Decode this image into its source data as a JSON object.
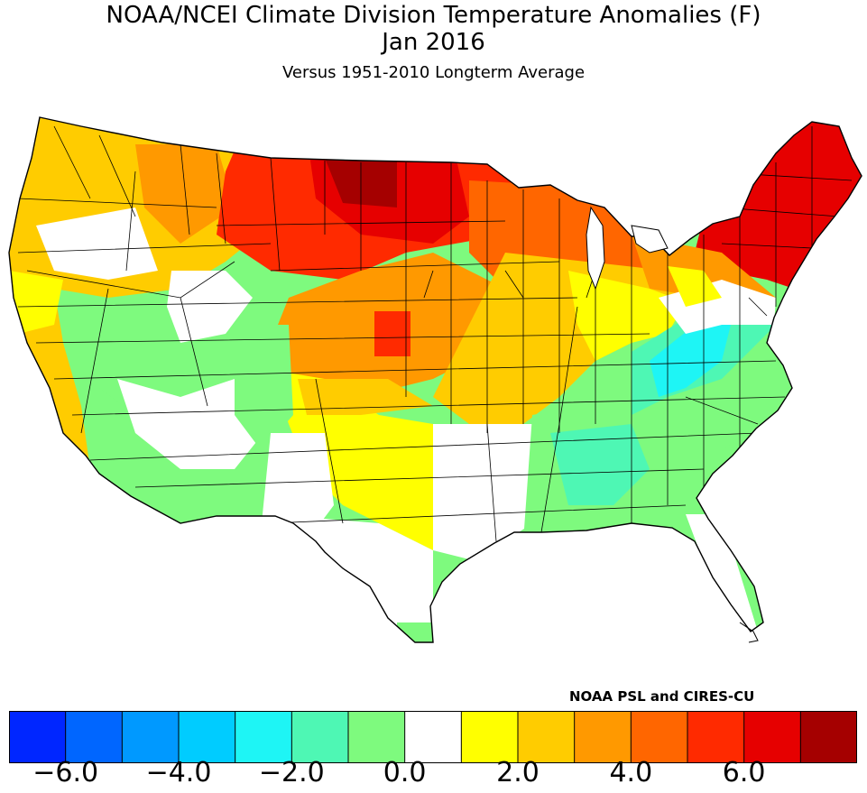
{
  "title": "NOAA/NCEI Climate Division Temperature Anomalies (F)",
  "period": "Jan 2016",
  "subtitle": "Versus 1951-2010 Longterm Average",
  "credit": "NOAA PSL and CIRES-CU",
  "colors": {
    "outline": "#000000",
    "background": "#ffffff",
    "plains_core": "#ff2a00",
    "dakotas_core": "#a50000",
    "new_england": "#e60000"
  },
  "legend": {
    "units": "F",
    "bins": [
      {
        "min": null,
        "max": -6.0,
        "color": "#0026ff"
      },
      {
        "min": -6.0,
        "max": -5.0,
        "color": "#0066ff"
      },
      {
        "min": -5.0,
        "max": -4.0,
        "color": "#0099ff"
      },
      {
        "min": -4.0,
        "max": -3.0,
        "color": "#00ccff"
      },
      {
        "min": -3.0,
        "max": -2.0,
        "color": "#1ef5f5"
      },
      {
        "min": -2.0,
        "max": -1.0,
        "color": "#4ef7b4"
      },
      {
        "min": -1.0,
        "max": 0.0,
        "color": "#7efa7e"
      },
      {
        "min": 0.0,
        "max": 1.0,
        "color": "#ffffff"
      },
      {
        "min": 1.0,
        "max": 2.0,
        "color": "#ffff00"
      },
      {
        "min": 2.0,
        "max": 3.0,
        "color": "#ffcc00"
      },
      {
        "min": 3.0,
        "max": 4.0,
        "color": "#ff9900"
      },
      {
        "min": 4.0,
        "max": 5.0,
        "color": "#ff6600"
      },
      {
        "min": 5.0,
        "max": 6.0,
        "color": "#ff2a00"
      },
      {
        "min": 6.0,
        "max": 7.0,
        "color": "#e60000"
      },
      {
        "min": 7.0,
        "max": null,
        "color": "#a50000"
      }
    ],
    "tick_labels": [
      "−6.0",
      "−4.0",
      "−2.0",
      "0.0",
      "2.0",
      "4.0",
      "6.0"
    ]
  }
}
